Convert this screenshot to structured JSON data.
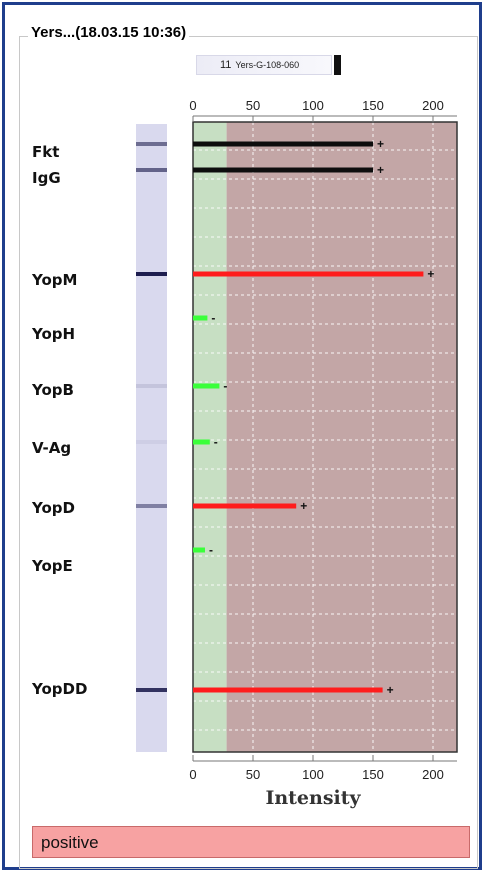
{
  "panel_title": "Yers...(18.03.15 10:36)",
  "strip_id": "Yers-G-108-060",
  "strip_number": "11",
  "result": "positive",
  "colors": {
    "frame": "#1f3e8c",
    "negative_zone": "#c7dfc3",
    "positive_zone": "#c3a6a6",
    "positive_bar": "#ff1c1c",
    "negative_bar": "#3aff3a",
    "control_bar": "#0d0d0d",
    "result_positive": "#f7a2a2",
    "strip": "#d9d9ee"
  },
  "chart_data": {
    "type": "bar",
    "orientation": "horizontal",
    "xlabel": "Intensity",
    "xlim": [
      0,
      220
    ],
    "xticks": [
      0,
      50,
      100,
      150,
      200
    ],
    "cutoff": 28,
    "grid": true,
    "rows": [
      {
        "label": "Fkt",
        "value": 150,
        "sign": "+",
        "kind": "control",
        "band": 0.55
      },
      {
        "label": "IgG",
        "value": 150,
        "sign": "+",
        "kind": "control",
        "band": 0.6
      },
      {
        "label": "YopM",
        "value": 192,
        "sign": "+",
        "kind": "positive",
        "band": 0.95
      },
      {
        "label": "YopH",
        "value": 12,
        "sign": "-",
        "kind": "negative",
        "band": 0
      },
      {
        "label": "YopB",
        "value": 22,
        "sign": "-",
        "kind": "negative",
        "band": 0.1
      },
      {
        "label": "V-Ag",
        "value": 14,
        "sign": "-",
        "kind": "negative",
        "band": 0.05
      },
      {
        "label": "YopD",
        "value": 86,
        "sign": "+",
        "kind": "positive",
        "band": 0.45
      },
      {
        "label": "YopE",
        "value": 10,
        "sign": "-",
        "kind": "negative",
        "band": 0
      },
      {
        "label": "YopDD",
        "value": 158,
        "sign": "+",
        "kind": "positive",
        "band": 0.85
      }
    ]
  }
}
